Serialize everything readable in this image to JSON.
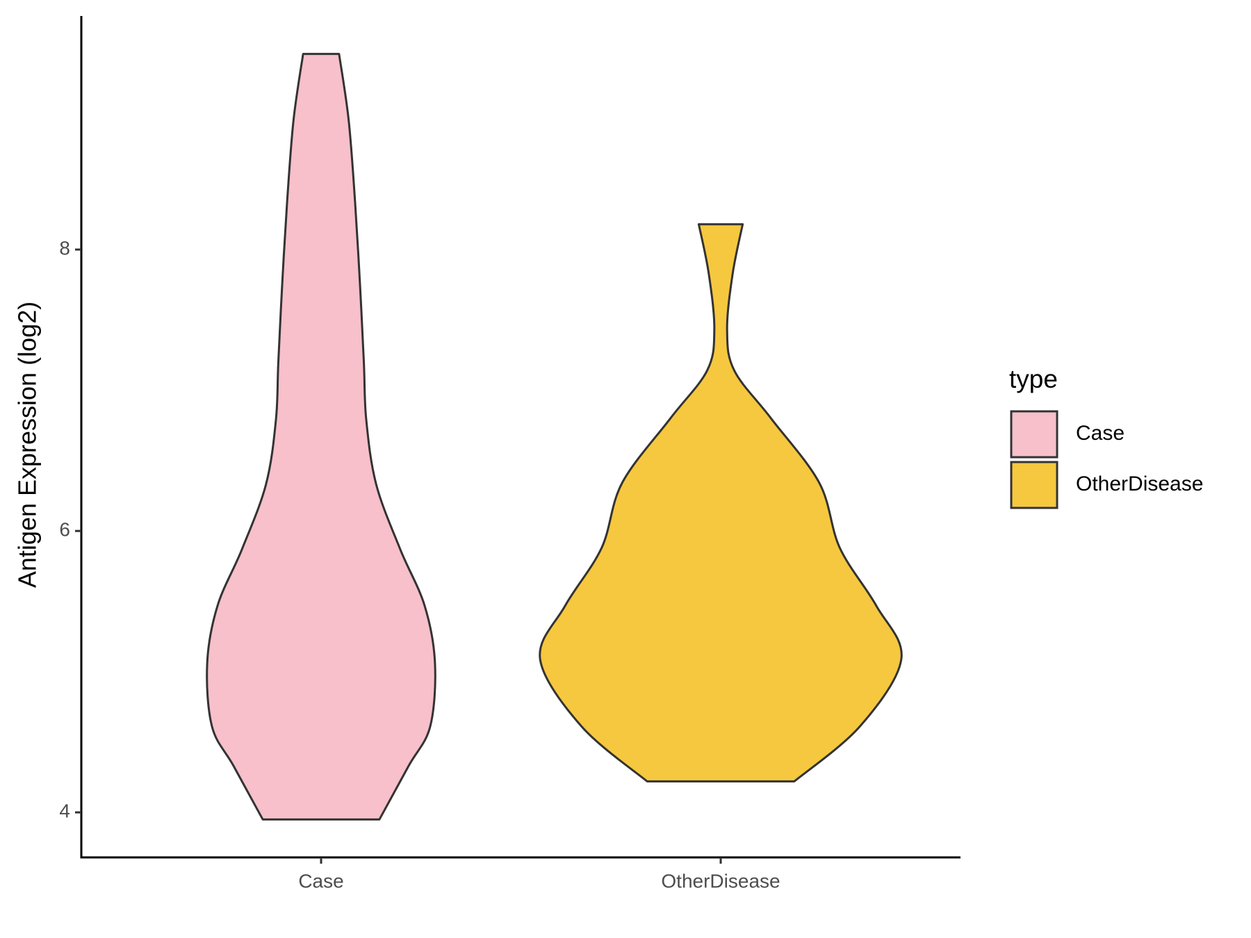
{
  "chart_data": {
    "type": "violin",
    "y_label": "Antigen Expression (log2)",
    "categories": [
      "Case",
      "OtherDisease"
    ],
    "legend_title": "type",
    "legend_position": "right",
    "ylim": [
      3.68,
      9.66
    ],
    "yticks": [
      4,
      6,
      8
    ],
    "series": [
      {
        "name": "Case",
        "color": "#F7C0CB",
        "y": [
          3.95,
          4.33,
          4.61,
          5.06,
          5.47,
          5.87,
          6.33,
          6.79,
          7.2,
          7.77,
          8.34,
          8.92,
          9.39
        ],
        "half_width": [
          0.146,
          0.219,
          0.273,
          0.285,
          0.259,
          0.198,
          0.138,
          0.113,
          0.107,
          0.097,
          0.085,
          0.069,
          0.045
        ]
      },
      {
        "name": "OtherDisease",
        "color": "#F6C83F",
        "y": [
          4.22,
          4.61,
          5.09,
          5.47,
          5.88,
          6.34,
          6.8,
          7.14,
          7.43,
          7.83,
          8.18
        ],
        "half_width": [
          0.184,
          0.348,
          0.452,
          0.389,
          0.298,
          0.247,
          0.126,
          0.034,
          0.016,
          0.03,
          0.055
        ]
      }
    ]
  }
}
